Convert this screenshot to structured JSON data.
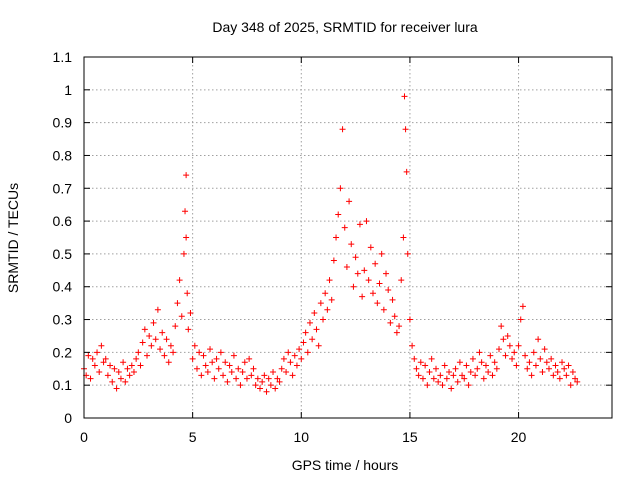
{
  "chart_data": {
    "type": "scatter",
    "title": "Day 348 of 2025, SRMTID for receiver lura",
    "xlabel": "GPS time / hours",
    "ylabel": "SRMTID / TECUs",
    "xlim": [
      0,
      24.3
    ],
    "ylim": [
      0,
      1.1
    ],
    "xticks": [
      0,
      5,
      10,
      15,
      20
    ],
    "xtick_labels": [
      "0",
      "5",
      "10",
      "15",
      "20"
    ],
    "yticks": [
      0,
      0.1,
      0.2,
      0.3,
      0.4,
      0.5,
      0.6,
      0.7,
      0.8,
      0.9,
      1.0,
      1.1
    ],
    "ytick_labels": [
      "0",
      "0.1",
      "0.2",
      "0.3",
      "0.4",
      "0.5",
      "0.6",
      "0.7",
      "0.8",
      "0.9",
      "1",
      "1.1"
    ],
    "grid": true,
    "marker": "plus",
    "marker_color": "#ff0000",
    "series": [
      {
        "name": "SRMTID",
        "x": [
          0.0,
          0.1,
          0.2,
          0.3,
          0.4,
          0.5,
          0.6,
          0.7,
          0.8,
          0.9,
          1.0,
          1.1,
          1.2,
          1.3,
          1.4,
          1.5,
          1.6,
          1.7,
          1.8,
          1.9,
          2.0,
          2.1,
          2.2,
          2.3,
          2.4,
          2.5,
          2.6,
          2.7,
          2.8,
          2.9,
          3.0,
          3.1,
          3.2,
          3.3,
          3.4,
          3.5,
          3.6,
          3.7,
          3.8,
          3.9,
          4.0,
          4.1,
          4.2,
          4.3,
          4.4,
          4.5,
          4.6,
          4.65,
          4.7,
          4.7,
          4.75,
          4.8,
          4.9,
          5.0,
          5.1,
          5.2,
          5.3,
          5.4,
          5.5,
          5.6,
          5.7,
          5.8,
          5.9,
          6.0,
          6.1,
          6.2,
          6.3,
          6.4,
          6.5,
          6.6,
          6.7,
          6.8,
          6.9,
          7.0,
          7.1,
          7.2,
          7.3,
          7.4,
          7.5,
          7.6,
          7.7,
          7.8,
          7.9,
          8.0,
          8.1,
          8.2,
          8.3,
          8.4,
          8.5,
          8.6,
          8.7,
          8.8,
          8.9,
          9.0,
          9.1,
          9.2,
          9.3,
          9.4,
          9.5,
          9.6,
          9.7,
          9.8,
          9.9,
          10.0,
          10.1,
          10.2,
          10.3,
          10.4,
          10.5,
          10.6,
          10.7,
          10.8,
          10.9,
          11.0,
          11.1,
          11.2,
          11.3,
          11.4,
          11.5,
          11.6,
          11.7,
          11.8,
          11.9,
          12.0,
          12.1,
          12.2,
          12.3,
          12.4,
          12.5,
          12.6,
          12.7,
          12.8,
          12.9,
          13.0,
          13.1,
          13.2,
          13.3,
          13.4,
          13.5,
          13.6,
          13.7,
          13.8,
          13.9,
          14.0,
          14.1,
          14.2,
          14.3,
          14.4,
          14.5,
          14.6,
          14.7,
          14.75,
          14.8,
          14.85,
          14.9,
          15.0,
          15.1,
          15.2,
          15.3,
          15.4,
          15.5,
          15.6,
          15.7,
          15.8,
          15.9,
          16.0,
          16.1,
          16.2,
          16.3,
          16.4,
          16.5,
          16.6,
          16.7,
          16.8,
          16.9,
          17.0,
          17.1,
          17.2,
          17.3,
          17.4,
          17.5,
          17.6,
          17.7,
          17.8,
          17.9,
          18.0,
          18.1,
          18.2,
          18.3,
          18.4,
          18.5,
          18.6,
          18.7,
          18.8,
          18.9,
          19.0,
          19.1,
          19.2,
          19.3,
          19.4,
          19.5,
          19.6,
          19.7,
          19.8,
          19.9,
          20.0,
          20.1,
          20.2,
          20.3,
          20.4,
          20.5,
          20.6,
          20.7,
          20.8,
          20.9,
          21.0,
          21.1,
          21.2,
          21.3,
          21.4,
          21.5,
          21.6,
          21.7,
          21.8,
          21.9,
          22.0,
          22.1,
          22.2,
          22.3,
          22.4,
          22.5,
          22.6,
          22.7
        ],
        "y": [
          0.15,
          0.13,
          0.19,
          0.12,
          0.18,
          0.16,
          0.2,
          0.14,
          0.22,
          0.17,
          0.18,
          0.13,
          0.16,
          0.11,
          0.15,
          0.09,
          0.14,
          0.12,
          0.17,
          0.11,
          0.15,
          0.13,
          0.16,
          0.14,
          0.18,
          0.2,
          0.16,
          0.23,
          0.27,
          0.19,
          0.25,
          0.22,
          0.29,
          0.24,
          0.33,
          0.21,
          0.26,
          0.19,
          0.24,
          0.17,
          0.22,
          0.2,
          0.28,
          0.35,
          0.42,
          0.31,
          0.5,
          0.63,
          0.74,
          0.55,
          0.38,
          0.27,
          0.32,
          0.18,
          0.22,
          0.15,
          0.2,
          0.13,
          0.19,
          0.16,
          0.14,
          0.21,
          0.17,
          0.12,
          0.18,
          0.15,
          0.2,
          0.13,
          0.17,
          0.11,
          0.16,
          0.14,
          0.19,
          0.12,
          0.15,
          0.1,
          0.14,
          0.17,
          0.12,
          0.18,
          0.13,
          0.15,
          0.1,
          0.12,
          0.09,
          0.11,
          0.13,
          0.08,
          0.12,
          0.1,
          0.14,
          0.09,
          0.12,
          0.11,
          0.15,
          0.18,
          0.14,
          0.2,
          0.17,
          0.13,
          0.19,
          0.16,
          0.21,
          0.18,
          0.23,
          0.26,
          0.2,
          0.29,
          0.24,
          0.32,
          0.27,
          0.22,
          0.35,
          0.3,
          0.38,
          0.33,
          0.42,
          0.36,
          0.48,
          0.55,
          0.62,
          0.7,
          0.88,
          0.58,
          0.46,
          0.66,
          0.53,
          0.4,
          0.49,
          0.44,
          0.59,
          0.37,
          0.45,
          0.6,
          0.42,
          0.52,
          0.38,
          0.47,
          0.35,
          0.41,
          0.5,
          0.33,
          0.44,
          0.39,
          0.29,
          0.36,
          0.31,
          0.26,
          0.28,
          0.42,
          0.55,
          0.98,
          0.88,
          0.75,
          0.5,
          0.3,
          0.22,
          0.18,
          0.15,
          0.13,
          0.17,
          0.12,
          0.16,
          0.1,
          0.14,
          0.18,
          0.12,
          0.15,
          0.11,
          0.13,
          0.1,
          0.16,
          0.12,
          0.14,
          0.09,
          0.13,
          0.15,
          0.11,
          0.17,
          0.13,
          0.12,
          0.16,
          0.1,
          0.14,
          0.18,
          0.13,
          0.15,
          0.2,
          0.17,
          0.12,
          0.16,
          0.14,
          0.19,
          0.13,
          0.17,
          0.15,
          0.21,
          0.28,
          0.24,
          0.19,
          0.25,
          0.22,
          0.18,
          0.2,
          0.16,
          0.22,
          0.3,
          0.34,
          0.19,
          0.15,
          0.17,
          0.13,
          0.2,
          0.16,
          0.24,
          0.18,
          0.14,
          0.21,
          0.17,
          0.15,
          0.18,
          0.13,
          0.16,
          0.14,
          0.12,
          0.17,
          0.15,
          0.13,
          0.16,
          0.1,
          0.14,
          0.12,
          0.11
        ]
      }
    ]
  }
}
